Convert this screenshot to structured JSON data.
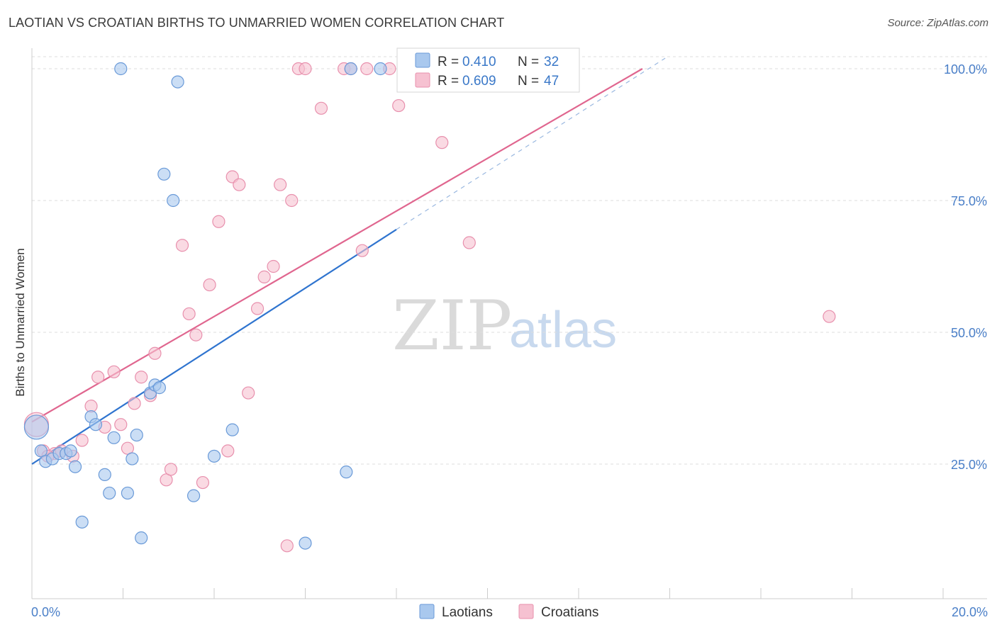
{
  "title": "LAOTIAN VS CROATIAN BIRTHS TO UNMARRIED WOMEN CORRELATION CHART",
  "source": "Source: ZipAtlas.com",
  "watermark": {
    "zip": "ZIP",
    "atlas": "atlas"
  },
  "colors": {
    "laotian_fill": "#a9c8ee",
    "laotian_stroke": "#6a9ad8",
    "laotian_line": "#2f74cf",
    "croatian_fill": "#f6c1d1",
    "croatian_stroke": "#e890ad",
    "croatian_line": "#e0668f",
    "grid": "#dddddd",
    "tick_text": "#4a7fc8"
  },
  "legend_top": {
    "laotian": {
      "r_label": "R =",
      "r_value": "0.410",
      "n_label": "N =",
      "n_value": "32"
    },
    "croatian": {
      "r_label": "R =",
      "r_value": "0.609",
      "n_label": "N =",
      "n_value": "47"
    }
  },
  "chart_data": {
    "type": "scatter",
    "title": "LAOTIAN VS CROATIAN BIRTHS TO UNMARRIED WOMEN CORRELATION CHART",
    "xlabel": "",
    "ylabel": "Births to Unmarried Women",
    "xlim": [
      0,
      20
    ],
    "ylim": [
      2,
      102
    ],
    "x_tick_labels": [
      {
        "value": 0,
        "label": "0.0%"
      },
      {
        "value": 20,
        "label": "20.0%"
      }
    ],
    "y_tick_labels": [
      {
        "value": 25,
        "label": "25.0%"
      },
      {
        "value": 50,
        "label": "50.0%"
      },
      {
        "value": 75,
        "label": "75.0%"
      },
      {
        "value": 100,
        "label": "100.0%"
      }
    ],
    "series": [
      {
        "name": "Laotians",
        "r": 0.41,
        "n": 32,
        "trend": {
          "x": [
            0,
            8
          ],
          "y": [
            25,
            69.5
          ],
          "dashed_to": [
            13.9,
            102
          ]
        },
        "points": [
          {
            "x": 0.1,
            "y": 32,
            "big": true
          },
          {
            "x": 0.2,
            "y": 27.5
          },
          {
            "x": 0.3,
            "y": 25.5
          },
          {
            "x": 0.45,
            "y": 26
          },
          {
            "x": 0.6,
            "y": 27
          },
          {
            "x": 0.75,
            "y": 27
          },
          {
            "x": 0.85,
            "y": 27.5
          },
          {
            "x": 0.95,
            "y": 24.5
          },
          {
            "x": 1.1,
            "y": 14
          },
          {
            "x": 1.3,
            "y": 34
          },
          {
            "x": 1.4,
            "y": 32.5
          },
          {
            "x": 1.6,
            "y": 23
          },
          {
            "x": 1.7,
            "y": 19.5
          },
          {
            "x": 1.8,
            "y": 30
          },
          {
            "x": 1.95,
            "y": 100
          },
          {
            "x": 2.1,
            "y": 19.5
          },
          {
            "x": 2.2,
            "y": 26
          },
          {
            "x": 2.3,
            "y": 30.5
          },
          {
            "x": 2.4,
            "y": 11
          },
          {
            "x": 2.6,
            "y": 38.5
          },
          {
            "x": 2.7,
            "y": 40
          },
          {
            "x": 2.8,
            "y": 39.5
          },
          {
            "x": 2.9,
            "y": 80
          },
          {
            "x": 3.1,
            "y": 75
          },
          {
            "x": 3.2,
            "y": 97.5
          },
          {
            "x": 3.55,
            "y": 19
          },
          {
            "x": 4.0,
            "y": 26.5
          },
          {
            "x": 4.4,
            "y": 31.5
          },
          {
            "x": 6.0,
            "y": 10
          },
          {
            "x": 6.9,
            "y": 23.5
          },
          {
            "x": 7.0,
            "y": 100
          },
          {
            "x": 7.65,
            "y": 100
          }
        ]
      },
      {
        "name": "Croatians",
        "r": 0.609,
        "n": 47,
        "trend": {
          "x": [
            0,
            13.4
          ],
          "y": [
            33,
            100
          ]
        },
        "points": [
          {
            "x": 0.1,
            "y": 32.5,
            "big": true
          },
          {
            "x": 0.25,
            "y": 27.5
          },
          {
            "x": 0.5,
            "y": 27
          },
          {
            "x": 0.65,
            "y": 27.5
          },
          {
            "x": 0.9,
            "y": 26.5
          },
          {
            "x": 1.1,
            "y": 29.5
          },
          {
            "x": 1.3,
            "y": 36
          },
          {
            "x": 1.45,
            "y": 41.5
          },
          {
            "x": 1.6,
            "y": 32
          },
          {
            "x": 1.8,
            "y": 42.5
          },
          {
            "x": 1.95,
            "y": 32.5
          },
          {
            "x": 2.1,
            "y": 28
          },
          {
            "x": 2.25,
            "y": 36.5
          },
          {
            "x": 2.4,
            "y": 41.5
          },
          {
            "x": 2.6,
            "y": 38
          },
          {
            "x": 2.7,
            "y": 46
          },
          {
            "x": 2.95,
            "y": 22
          },
          {
            "x": 3.05,
            "y": 24
          },
          {
            "x": 3.3,
            "y": 66.5
          },
          {
            "x": 3.45,
            "y": 53.5
          },
          {
            "x": 3.6,
            "y": 49.5
          },
          {
            "x": 3.75,
            "y": 21.5
          },
          {
            "x": 3.9,
            "y": 59
          },
          {
            "x": 4.1,
            "y": 71
          },
          {
            "x": 4.3,
            "y": 27.5
          },
          {
            "x": 4.4,
            "y": 79.5
          },
          {
            "x": 4.55,
            "y": 78
          },
          {
            "x": 4.75,
            "y": 38.5
          },
          {
            "x": 4.95,
            "y": 54.5
          },
          {
            "x": 5.1,
            "y": 60.5
          },
          {
            "x": 5.3,
            "y": 62.5
          },
          {
            "x": 5.45,
            "y": 78
          },
          {
            "x": 5.6,
            "y": 9.5
          },
          {
            "x": 5.7,
            "y": 75
          },
          {
            "x": 5.85,
            "y": 100
          },
          {
            "x": 6.0,
            "y": 100
          },
          {
            "x": 6.35,
            "y": 92.5
          },
          {
            "x": 6.85,
            "y": 100
          },
          {
            "x": 7.0,
            "y": 100
          },
          {
            "x": 7.25,
            "y": 65.5
          },
          {
            "x": 7.35,
            "y": 100
          },
          {
            "x": 7.85,
            "y": 100
          },
          {
            "x": 8.05,
            "y": 93
          },
          {
            "x": 9.0,
            "y": 86
          },
          {
            "x": 9.6,
            "y": 67
          },
          {
            "x": 17.5,
            "y": 53
          },
          {
            "x": 0.35,
            "y": 26.5
          }
        ]
      }
    ],
    "legend": {
      "entries": [
        "Laotians",
        "Croatians"
      ],
      "placement": "bottom-center"
    }
  }
}
